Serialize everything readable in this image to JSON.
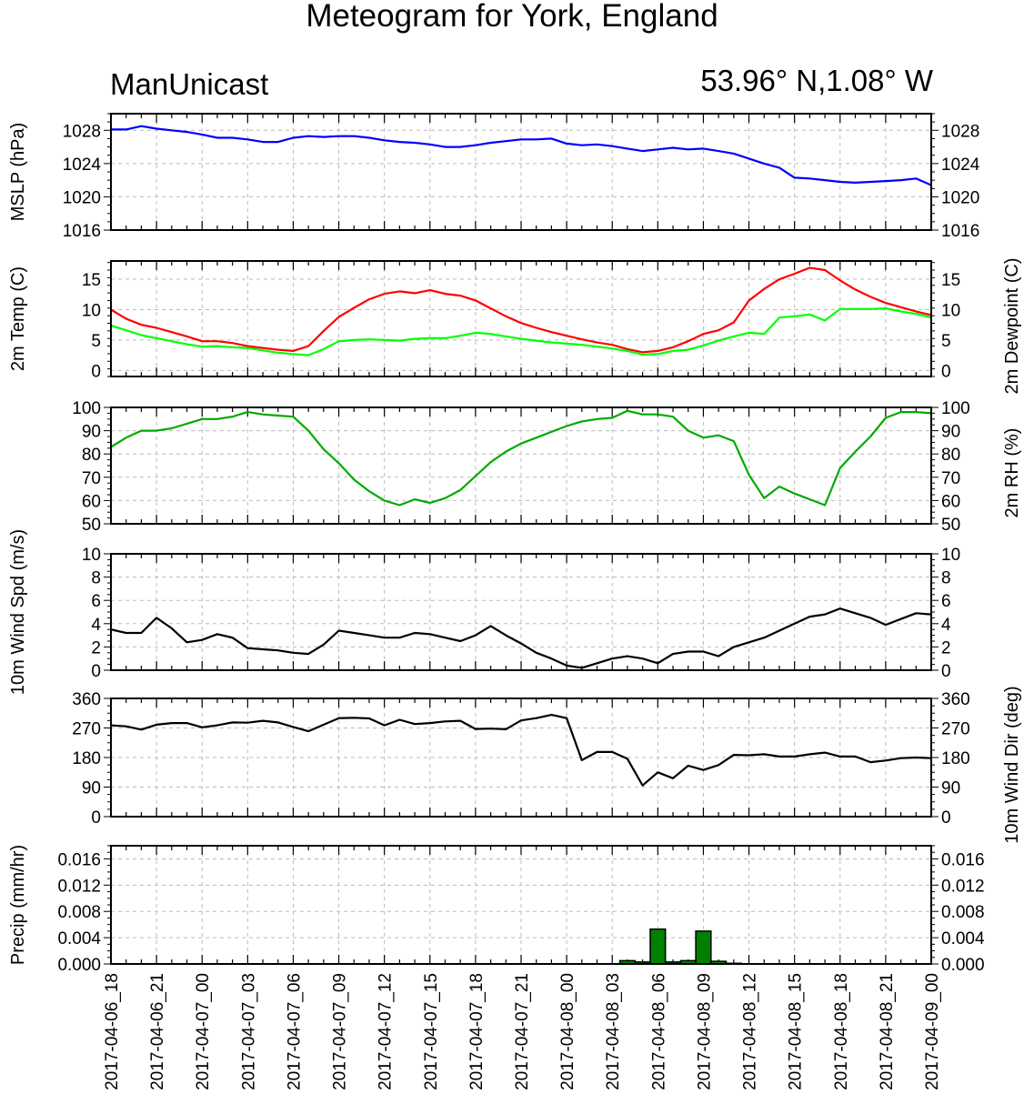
{
  "page": {
    "title": "Meteogram for York, England",
    "model": "ManUnicast",
    "location": "53.96° N,1.08° W"
  },
  "chart_data": [
    {
      "type": "line",
      "ylabel": "MSLP (hPa)",
      "ylabel_right": "",
      "ylim": [
        1016,
        1030
      ],
      "yticks": [
        1016,
        1020,
        1024,
        1028
      ],
      "x_hours": [
        0,
        1,
        2,
        3,
        4,
        5,
        6,
        7,
        8,
        9,
        10,
        11,
        12,
        13,
        14,
        15,
        16,
        17,
        18,
        19,
        20,
        21,
        22,
        23,
        24,
        25,
        26,
        27,
        28,
        29,
        30,
        31,
        32,
        33,
        34,
        35,
        36,
        37,
        38,
        39,
        40,
        41,
        42,
        43,
        44,
        45,
        46,
        47,
        48,
        49,
        50,
        51,
        52,
        53,
        54
      ],
      "series": [
        {
          "color": "#0000ff",
          "values": [
            1028.1,
            1028.1,
            1028.5,
            1028.2,
            1028.0,
            1027.8,
            1027.5,
            1027.1,
            1027.1,
            1026.9,
            1026.6,
            1026.6,
            1027.1,
            1027.3,
            1027.2,
            1027.3,
            1027.3,
            1027.1,
            1026.8,
            1026.6,
            1026.5,
            1026.3,
            1026.0,
            1026.0,
            1026.2,
            1026.5,
            1026.7,
            1026.9,
            1026.9,
            1027.0,
            1026.4,
            1026.2,
            1026.3,
            1026.1,
            1025.8,
            1025.5,
            1025.7,
            1025.9,
            1025.7,
            1025.8,
            1025.5,
            1025.2,
            1024.6,
            1024.0,
            1023.5,
            1022.3,
            1022.2,
            1022.0,
            1021.8,
            1021.7,
            1021.8,
            1021.9,
            1022.0,
            1022.2,
            1021.4
          ]
        }
      ]
    },
    {
      "type": "line",
      "ylabel": "2m Temp (C)",
      "ylabel_right": "2m Dewpoint (C)",
      "ylim": [
        -1,
        18
      ],
      "yticks": [
        0,
        5,
        10,
        15
      ],
      "x_hours": [
        0,
        1,
        2,
        3,
        4,
        5,
        6,
        7,
        8,
        9,
        10,
        11,
        12,
        13,
        14,
        15,
        16,
        17,
        18,
        19,
        20,
        21,
        22,
        23,
        24,
        25,
        26,
        27,
        28,
        29,
        30,
        31,
        32,
        33,
        34,
        35,
        36,
        37,
        38,
        39,
        40,
        41,
        42,
        43,
        44,
        45,
        46,
        47,
        48,
        49,
        50,
        51,
        52,
        53,
        54
      ],
      "series": [
        {
          "color": "#ff0000",
          "values": [
            10.0,
            8.5,
            7.5,
            7.0,
            6.3,
            5.6,
            4.8,
            4.8,
            4.5,
            4.0,
            3.7,
            3.4,
            3.2,
            4.0,
            6.5,
            8.8,
            10.3,
            11.7,
            12.6,
            13.0,
            12.7,
            13.2,
            12.6,
            12.3,
            11.5,
            10.2,
            8.9,
            7.8,
            7.0,
            6.3,
            5.7,
            5.1,
            4.6,
            4.2,
            3.5,
            3.0,
            3.2,
            3.8,
            4.8,
            6.0,
            6.6,
            7.9,
            11.5,
            13.4,
            15.0,
            15.9,
            16.9,
            16.5,
            14.8,
            13.3,
            12.1,
            11.1,
            10.4,
            9.7,
            9.1
          ]
        },
        {
          "color": "#00ff00",
          "values": [
            7.4,
            6.6,
            5.8,
            5.3,
            4.8,
            4.3,
            3.9,
            4.0,
            3.8,
            3.7,
            3.3,
            2.9,
            2.7,
            2.5,
            3.5,
            4.8,
            5.0,
            5.1,
            5.0,
            4.9,
            5.2,
            5.3,
            5.3,
            5.7,
            6.2,
            6.0,
            5.6,
            5.2,
            4.9,
            4.6,
            4.4,
            4.2,
            3.9,
            3.6,
            3.2,
            2.6,
            2.7,
            3.2,
            3.4,
            4.1,
            4.9,
            5.6,
            6.2,
            6.0,
            8.7,
            8.9,
            9.2,
            8.2,
            10.1,
            10.1,
            10.1,
            10.2,
            9.7,
            9.3,
            8.7
          ]
        }
      ]
    },
    {
      "type": "line",
      "ylabel": "",
      "ylabel_right": "2m RH (%)",
      "ylim": [
        50,
        100
      ],
      "yticks": [
        50,
        60,
        70,
        80,
        90,
        100
      ],
      "x_hours": [
        0,
        1,
        2,
        3,
        4,
        5,
        6,
        7,
        8,
        9,
        10,
        11,
        12,
        13,
        14,
        15,
        16,
        17,
        18,
        19,
        20,
        21,
        22,
        23,
        24,
        25,
        26,
        27,
        28,
        29,
        30,
        31,
        32,
        33,
        34,
        35,
        36,
        37,
        38,
        39,
        40,
        41,
        42,
        43,
        44,
        45,
        46,
        47,
        48,
        49,
        50,
        51,
        52,
        53,
        54
      ],
      "series": [
        {
          "color": "#00aa00",
          "values": [
            83,
            87,
            90,
            90,
            91,
            93,
            95,
            95,
            96,
            98,
            97,
            96.5,
            96,
            90,
            82,
            76,
            69,
            64,
            60,
            58,
            60.5,
            59,
            61,
            64.5,
            70.5,
            76.5,
            81,
            84.5,
            87,
            89.5,
            92,
            94,
            95,
            95.5,
            98.5,
            97,
            97,
            96,
            90,
            87,
            88,
            85.5,
            71,
            61,
            66,
            63,
            60.5,
            58,
            74,
            81,
            87.5,
            95.5,
            98,
            98,
            97.5
          ]
        }
      ]
    },
    {
      "type": "line",
      "ylabel": "10m Wind Spd (m/s)",
      "ylabel_right": "",
      "ylim": [
        0,
        10
      ],
      "yticks": [
        0,
        2,
        4,
        6,
        8,
        10
      ],
      "x_hours": [
        0,
        1,
        2,
        3,
        4,
        5,
        6,
        7,
        8,
        9,
        10,
        11,
        12,
        13,
        14,
        15,
        16,
        17,
        18,
        19,
        20,
        21,
        22,
        23,
        24,
        25,
        26,
        27,
        28,
        29,
        30,
        31,
        32,
        33,
        34,
        35,
        36,
        37,
        38,
        39,
        40,
        41,
        42,
        43,
        44,
        45,
        46,
        47,
        48,
        49,
        50,
        51,
        52,
        53,
        54
      ],
      "series": [
        {
          "color": "#000000",
          "values": [
            3.5,
            3.2,
            3.2,
            4.5,
            3.6,
            2.4,
            2.6,
            3.1,
            2.8,
            1.9,
            1.8,
            1.7,
            1.5,
            1.4,
            2.2,
            3.4,
            3.2,
            3.0,
            2.8,
            2.8,
            3.2,
            3.1,
            2.8,
            2.5,
            3.0,
            3.8,
            3.0,
            2.3,
            1.5,
            1.0,
            0.4,
            0.2,
            0.6,
            1.0,
            1.2,
            1.0,
            0.6,
            1.4,
            1.6,
            1.6,
            1.2,
            2.0,
            2.4,
            2.8,
            3.4,
            4.0,
            4.6,
            4.8,
            5.3,
            4.9,
            4.5,
            3.9,
            4.4,
            4.9,
            4.8
          ]
        }
      ]
    },
    {
      "type": "line",
      "ylabel": "",
      "ylabel_right": "10m Wind Dir (deg)",
      "ylim": [
        0,
        360
      ],
      "yticks": [
        0,
        90,
        180,
        270,
        360
      ],
      "x_hours": [
        0,
        1,
        2,
        3,
        4,
        5,
        6,
        7,
        8,
        9,
        10,
        11,
        12,
        13,
        14,
        15,
        16,
        17,
        18,
        19,
        20,
        21,
        22,
        23,
        24,
        25,
        26,
        27,
        28,
        29,
        30,
        31,
        32,
        33,
        34,
        35,
        36,
        37,
        38,
        39,
        40,
        41,
        42,
        43,
        44,
        45,
        46,
        47,
        48,
        49,
        50,
        51,
        52,
        53,
        54
      ],
      "series": [
        {
          "color": "#000000",
          "values": [
            278,
            275,
            265,
            280,
            285,
            285,
            272,
            278,
            287,
            286,
            292,
            287,
            273,
            260,
            280,
            300,
            301,
            299,
            278,
            295,
            282,
            285,
            290,
            292,
            267,
            268,
            266,
            293,
            300,
            310,
            300,
            172,
            197,
            197,
            176,
            95,
            135,
            117,
            155,
            142,
            157,
            188,
            187,
            190,
            183,
            183,
            190,
            195,
            183,
            183,
            166,
            171,
            178,
            180,
            178
          ]
        }
      ]
    },
    {
      "type": "bar",
      "ylabel": "Precip (mm/hr)",
      "ylabel_right": "",
      "ylim": [
        0,
        0.018
      ],
      "yticks": [
        0.0,
        0.004,
        0.008,
        0.012,
        0.016
      ],
      "ytick_labels": [
        "0.000",
        "0.004",
        "0.008",
        "0.012",
        "0.016"
      ],
      "x_hours": [
        34,
        35,
        36,
        37,
        38,
        39,
        40,
        41
      ],
      "series": [
        {
          "color": "#008000",
          "values": [
            0.0005,
            0.0003,
            0.0053,
            0.0003,
            0.0005,
            0.005,
            0.0004,
            0.0001
          ]
        }
      ]
    }
  ],
  "x_axis": {
    "tick_hours": [
      0,
      3,
      6,
      9,
      12,
      15,
      18,
      21,
      24,
      27,
      30,
      33,
      36,
      39,
      42,
      45,
      48,
      51,
      54
    ],
    "labels": [
      "2017-04-06_18",
      "2017-04-06_21",
      "2017-04-07_00",
      "2017-04-07_03",
      "2017-04-07_06",
      "2017-04-07_09",
      "2017-04-07_12",
      "2017-04-07_15",
      "2017-04-07_18",
      "2017-04-07_21",
      "2017-04-08_00",
      "2017-04-08_03",
      "2017-04-08_06",
      "2017-04-08_09",
      "2017-04-08_12",
      "2017-04-08_15",
      "2017-04-08_18",
      "2017-04-08_21",
      "2017-04-09_00"
    ]
  }
}
